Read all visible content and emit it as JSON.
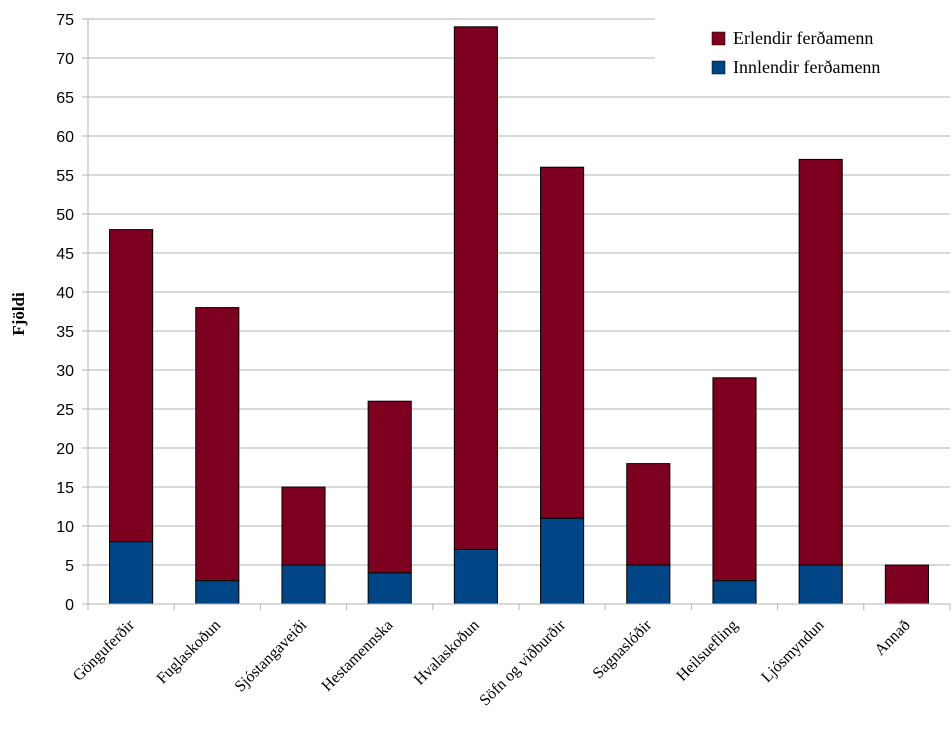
{
  "chart_data": {
    "type": "bar",
    "stacked": true,
    "title": "",
    "xlabel": "",
    "ylabel": "Fjöldi",
    "ylim": [
      0,
      75
    ],
    "ytick_step": 5,
    "grid": true,
    "legend_position": "top-right",
    "categories": [
      "Gönguferðir",
      "Fuglaskoðun",
      "Sjóstangaveiði",
      "Hestamennska",
      "Hvalaskoðun",
      "Söfn og viðburðir",
      "Sagnaslóðir",
      "Heilsuefling",
      "Ljósmyndun",
      "Annað"
    ],
    "series": [
      {
        "name": "Innlendir ferðamenn",
        "color": "#004586",
        "values": [
          8,
          3,
          5,
          4,
          7,
          11,
          5,
          3,
          5,
          0
        ]
      },
      {
        "name": "Erlendir ferðamenn",
        "color": "#7e0021",
        "values": [
          40,
          35,
          10,
          22,
          67,
          45,
          13,
          26,
          52,
          5
        ]
      }
    ],
    "legend_order": [
      "Erlendir ferðamenn",
      "Innlendir ferðamenn"
    ]
  }
}
